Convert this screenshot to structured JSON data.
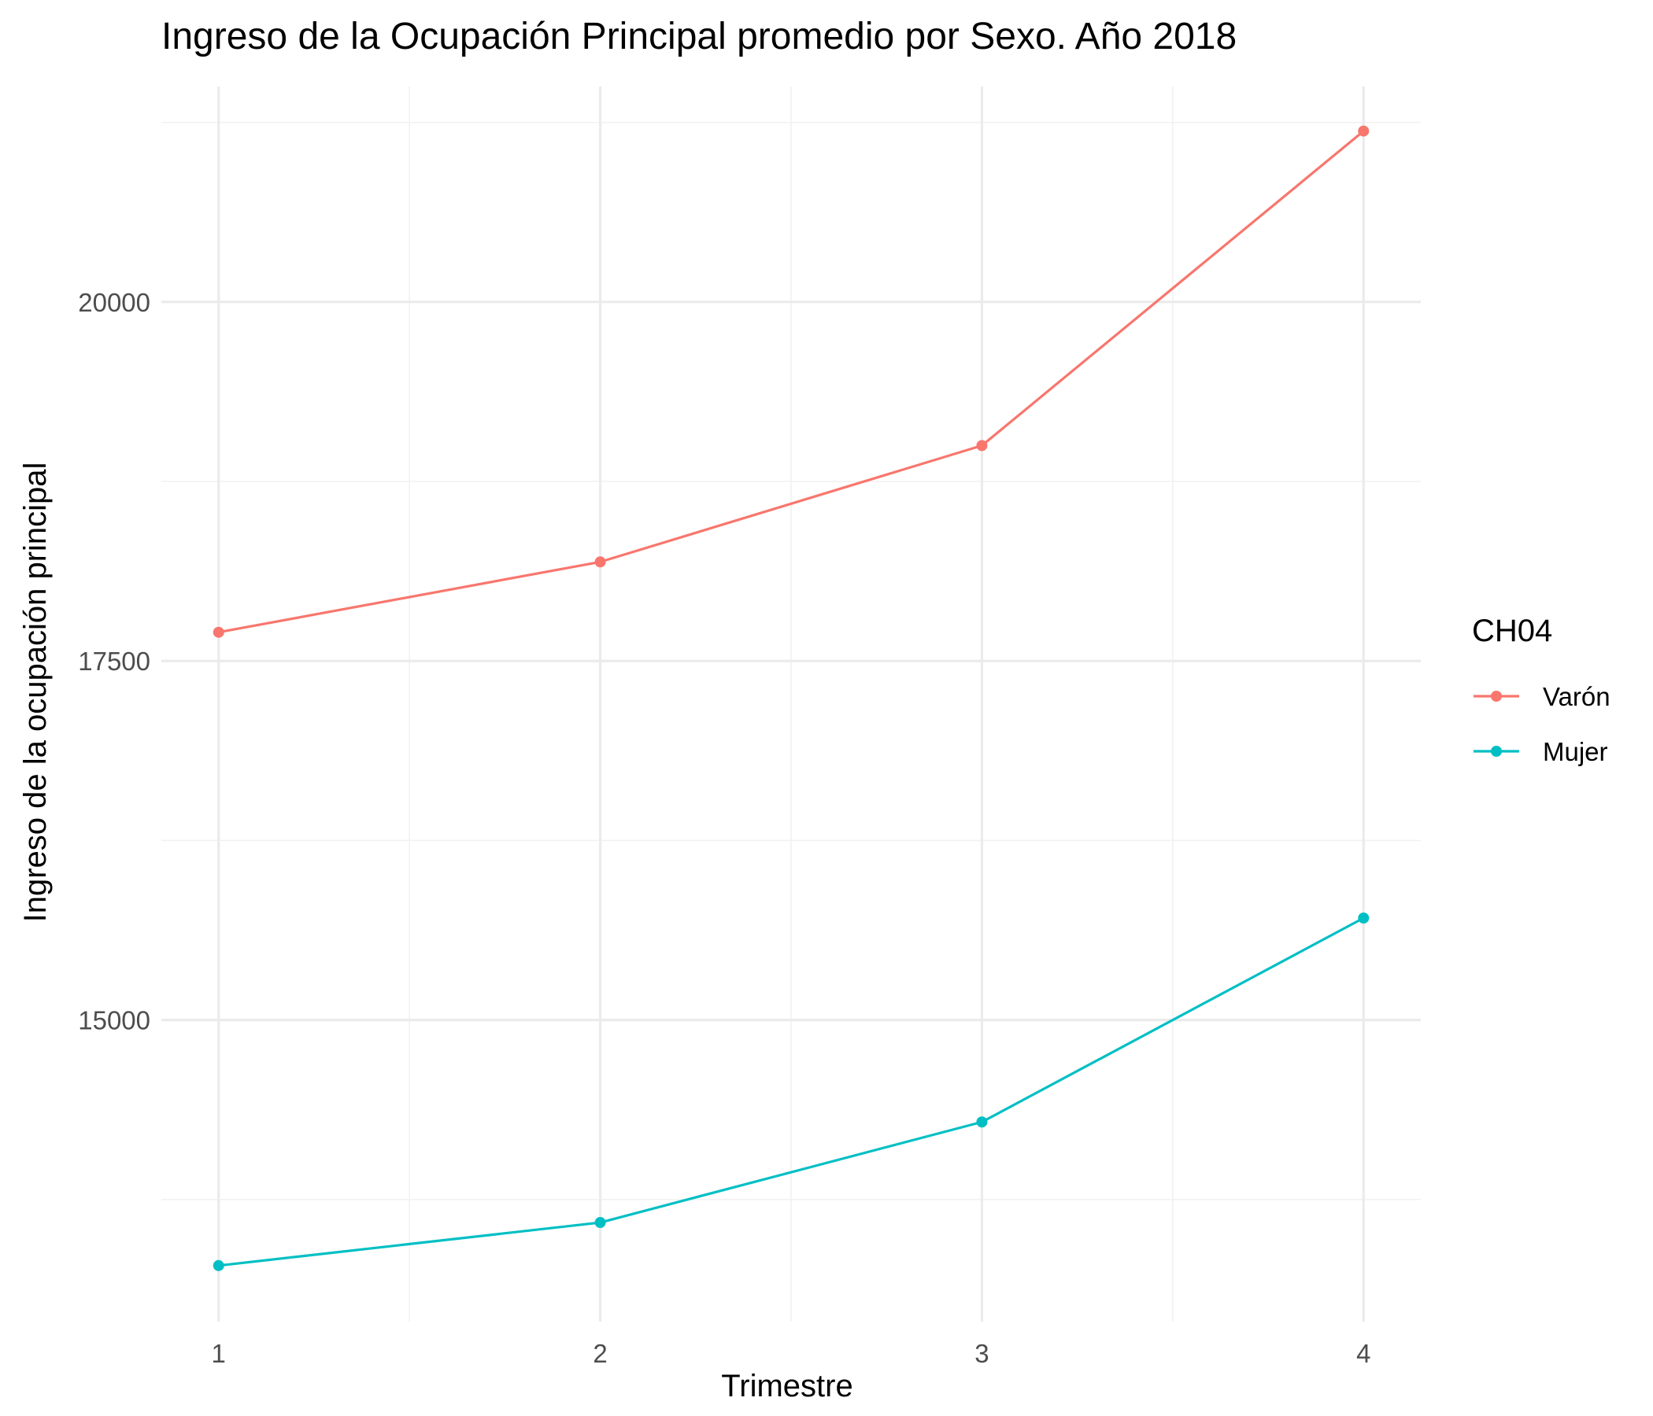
{
  "chart_data": {
    "type": "line",
    "title": "Ingreso de la Ocupación Principal promedio por Sexo. Año 2018",
    "xlabel": "Trimestre",
    "ylabel": "Ingreso de la ocupación principal",
    "x": [
      1,
      2,
      3,
      4
    ],
    "x_ticks": [
      1,
      2,
      3,
      4
    ],
    "y_ticks": [
      15000,
      17500,
      20000
    ],
    "xlim": [
      0.85,
      4.15
    ],
    "ylim": [
      12900,
      21500
    ],
    "grid": true,
    "legend_title": "CH04",
    "legend_position": "right",
    "series": [
      {
        "name": "Varón",
        "color": "#F8766D",
        "values": [
          17700,
          18190,
          19000,
          21190
        ]
      },
      {
        "name": "Mujer",
        "color": "#00BFC4",
        "values": [
          13290,
          13590,
          14290,
          15710
        ]
      }
    ]
  }
}
